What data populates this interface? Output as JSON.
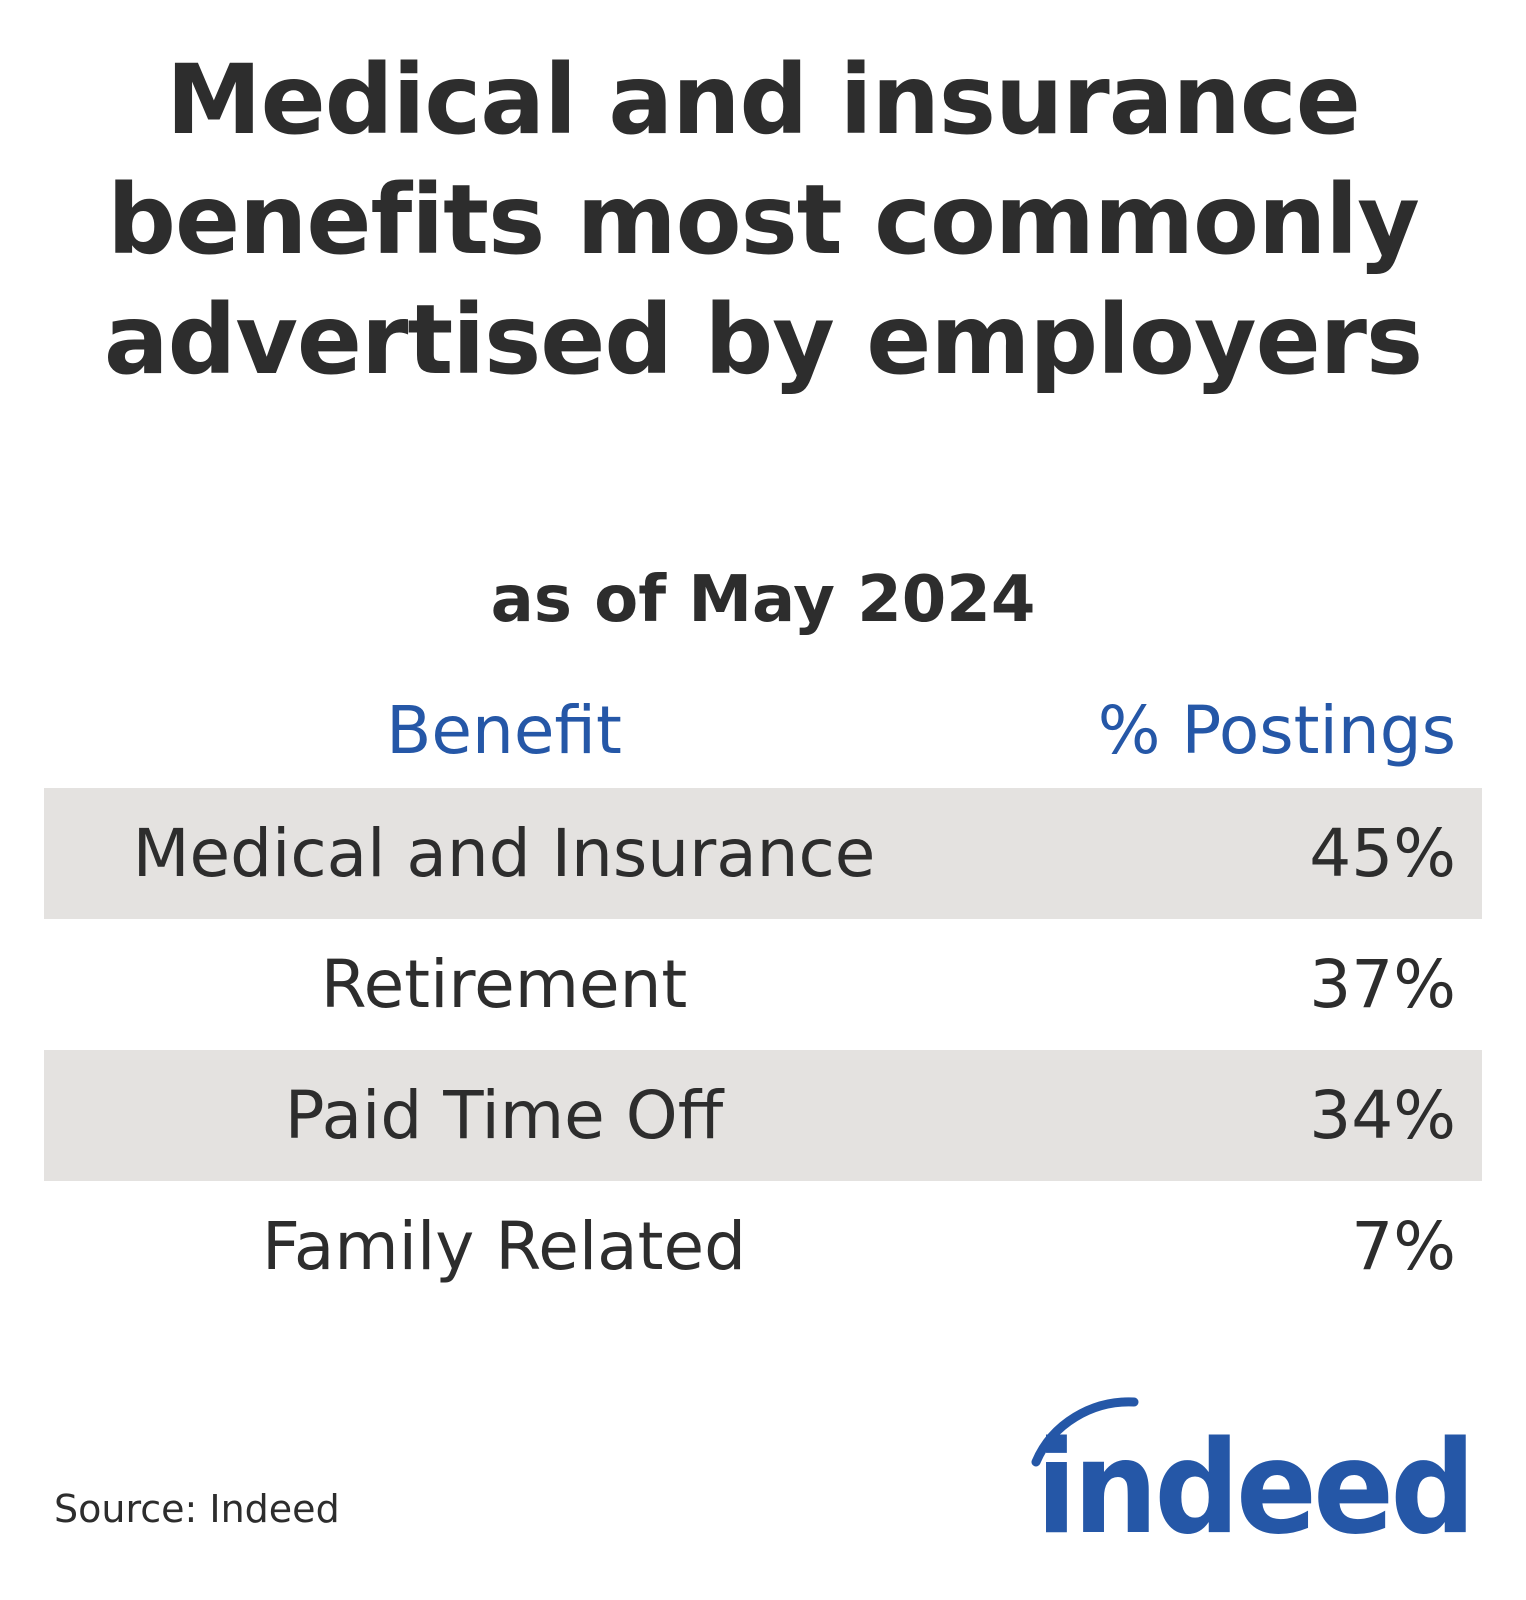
{
  "chart_data": {
    "type": "table",
    "title": "Medical and insurance benefits most commonly advertised by employers",
    "subtitle": "as of May 2024",
    "columns": [
      "Benefit",
      "% Postings"
    ],
    "rows": [
      {
        "benefit": "Medical and Insurance",
        "value_label": "45%",
        "value": 45
      },
      {
        "benefit": "Retirement",
        "value_label": "37%",
        "value": 37
      },
      {
        "benefit": "Paid Time Off",
        "value_label": "34%",
        "value": 34
      },
      {
        "benefit": "Family Related",
        "value_label": "7%",
        "value": 7
      }
    ],
    "source": "Source: Indeed"
  },
  "logo": {
    "text": "indeed",
    "color": "#2557a7"
  },
  "colors": {
    "text": "#2d2d2d",
    "header": "#2557a7",
    "row_shade": "#e4e2e0"
  }
}
